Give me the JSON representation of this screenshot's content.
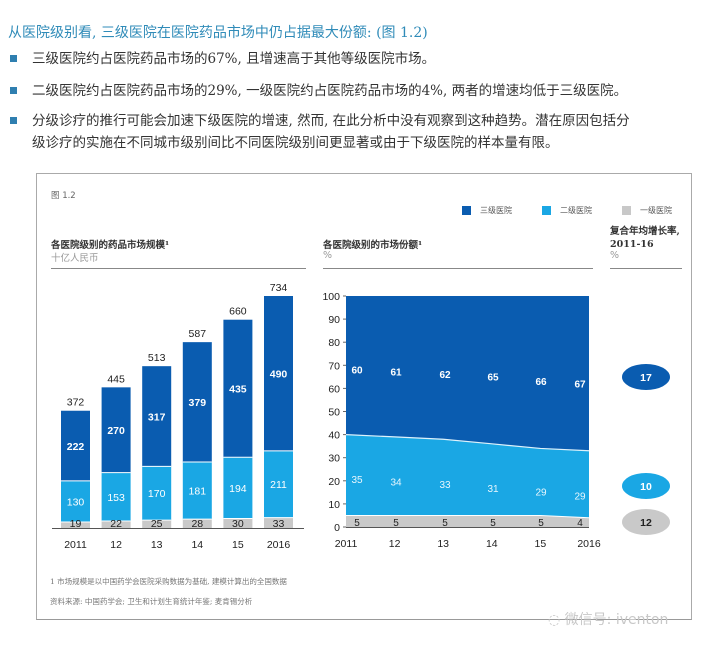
{
  "heading": "从医院级别看, 三级医院在医院药品市场中仍占据最大份额: (图 1.2)",
  "bullets": [
    "三级医院约占医院药品市场的67%, 且增速高于其他等级医院市场。",
    "二级医院约占医院药品市场的29%, 一级医院约占医院药品市场的4%, 两者的增速均低于三级医院。",
    "分级诊疗的推行可能会加速下级医院的增速, 然而, 在此分析中没有观察到这种趋势。潜在原因包括分",
    "级诊疗的实施在不同城市级别间比不同医院级别间更显著或由于下级医院的样本量有限。"
  ],
  "figure_label": "图 1.2",
  "legend": [
    {
      "label": "三级医院",
      "color": "#0a5cb0"
    },
    {
      "label": "二级医院",
      "color": "#1aa7e4"
    },
    {
      "label": "一级医院",
      "color": "#c8c8c8"
    }
  ],
  "footnotes": [
    "1 市场规模是以中国药学会医院采购数据为基础, 建模计算出的全国数据",
    "资料来源: 中国药学会; 卫生和计划生育统计年鉴; 麦肯锡分析"
  ],
  "watermark": "微信号: iventon",
  "chart_data": [
    {
      "type": "bar",
      "stacked": true,
      "title": "各医院级别的药品市场规模¹",
      "subtitle": "十亿人民币",
      "categories": [
        "2011",
        "12",
        "13",
        "14",
        "15",
        "2016"
      ],
      "series": [
        {
          "name": "一级医院",
          "values": [
            19,
            22,
            25,
            28,
            30,
            33
          ]
        },
        {
          "name": "二级医院",
          "values": [
            130,
            153,
            170,
            181,
            194,
            211
          ]
        },
        {
          "name": "三级医院",
          "values": [
            222,
            270,
            317,
            379,
            435,
            490
          ]
        }
      ],
      "totals": [
        372,
        445,
        513,
        587,
        660,
        734
      ],
      "ylim": [
        0,
        734
      ]
    },
    {
      "type": "area",
      "stacked": true,
      "title": "各医院级别的市场份额¹",
      "subtitle": "%",
      "x": [
        "2011",
        "12",
        "13",
        "14",
        "15",
        "2016"
      ],
      "yticks": [
        "0",
        "10",
        "20",
        "30",
        "40",
        "50",
        "60",
        "70",
        "80",
        "90",
        "100"
      ],
      "ylim": [
        0,
        100
      ],
      "series": [
        {
          "name": "一级医院",
          "values": [
            5,
            5,
            5,
            5,
            5,
            4
          ]
        },
        {
          "name": "二级医院",
          "values": [
            35,
            34,
            33,
            31,
            29,
            29
          ]
        },
        {
          "name": "三级医院",
          "values": [
            60,
            61,
            62,
            65,
            66,
            67
          ]
        }
      ]
    },
    {
      "type": "table",
      "title": "复合年均增长率, 2011-16",
      "subtitle": "%",
      "rows": [
        {
          "name": "三级医院",
          "value": "17"
        },
        {
          "name": "二级医院",
          "value": "10"
        },
        {
          "name": "一级医院",
          "value": "12"
        }
      ]
    }
  ]
}
